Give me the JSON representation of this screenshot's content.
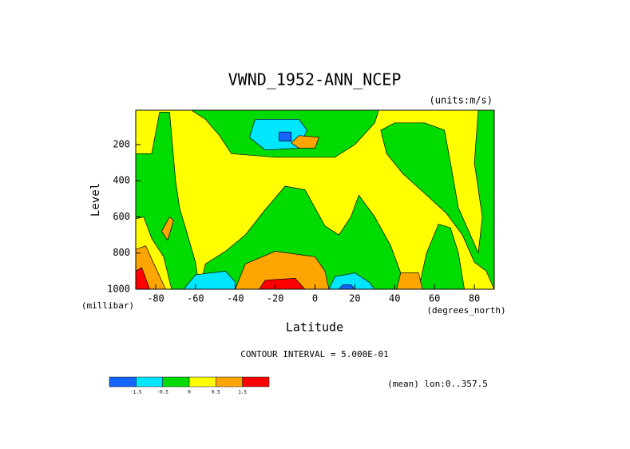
{
  "chart_data": {
    "type": "contour",
    "title": "VWND_1952-ANN_NCEP",
    "units_label": "(units:m/s)",
    "y_label": "Level",
    "y_units": "(millibar)",
    "x_label": "Latitude",
    "x_units": "(degrees_north)",
    "contour_interval": "CONTOUR INTERVAL = 5.000E-01",
    "note": "(mean) lon:0..357.5",
    "xlim": [
      -90,
      90
    ],
    "ylim": [
      1000,
      10
    ],
    "xticks": [
      -80,
      -60,
      -40,
      -20,
      0,
      20,
      40,
      60,
      80
    ],
    "yticks": [
      200,
      400,
      600,
      800,
      1000
    ],
    "background_bin": 3,
    "colorbar": {
      "colors": [
        "#1464ff",
        "#00e6ff",
        "#00dc00",
        "#ffff00",
        "#ffa500",
        "#ff0000"
      ],
      "boundaries": [
        -1.5,
        -0.5,
        0.0,
        0.5,
        1.5
      ]
    },
    "regions": [
      {
        "bin": 2,
        "points": [
          [
            -90,
            250
          ],
          [
            -82,
            250
          ],
          [
            -78,
            20
          ],
          [
            -73,
            20
          ],
          [
            -72,
            150
          ],
          [
            -70,
            400
          ],
          [
            -68,
            550
          ],
          [
            -64,
            700
          ],
          [
            -60,
            850
          ],
          [
            -58,
            1000
          ],
          [
            -90,
            1000
          ]
        ]
      },
      {
        "bin": 3,
        "points": [
          [
            -90,
            610
          ],
          [
            -86,
            600
          ],
          [
            -82,
            720
          ],
          [
            -76,
            820
          ],
          [
            -72,
            1000
          ],
          [
            -90,
            1000
          ]
        ]
      },
      {
        "bin": 2,
        "points": [
          [
            -62,
            10
          ],
          [
            32,
            10
          ],
          [
            30,
            80
          ],
          [
            20,
            200
          ],
          [
            10,
            270
          ],
          [
            -20,
            270
          ],
          [
            -42,
            250
          ],
          [
            -48,
            150
          ],
          [
            -55,
            60
          ]
        ]
      },
      {
        "bin": 2,
        "points": [
          [
            -58,
            1000
          ],
          [
            -55,
            860
          ],
          [
            -45,
            790
          ],
          [
            -35,
            700
          ],
          [
            -25,
            560
          ],
          [
            -15,
            430
          ],
          [
            -5,
            450
          ],
          [
            5,
            650
          ],
          [
            12,
            700
          ],
          [
            18,
            600
          ],
          [
            22,
            480
          ],
          [
            30,
            600
          ],
          [
            38,
            760
          ],
          [
            44,
            940
          ],
          [
            48,
            1000
          ]
        ]
      },
      {
        "bin": 2,
        "points": [
          [
            33,
            120
          ],
          [
            40,
            80
          ],
          [
            55,
            80
          ],
          [
            65,
            120
          ],
          [
            68,
            300
          ],
          [
            72,
            550
          ],
          [
            78,
            700
          ],
          [
            82,
            800
          ],
          [
            84,
            600
          ],
          [
            80,
            300
          ],
          [
            82,
            10
          ],
          [
            90,
            10
          ],
          [
            90,
            1000
          ],
          [
            86,
            900
          ],
          [
            80,
            850
          ],
          [
            74,
            700
          ],
          [
            66,
            580
          ],
          [
            56,
            480
          ],
          [
            44,
            360
          ],
          [
            36,
            250
          ]
        ]
      },
      {
        "bin": 2,
        "points": [
          [
            52,
            1000
          ],
          [
            56,
            800
          ],
          [
            62,
            640
          ],
          [
            68,
            660
          ],
          [
            72,
            800
          ],
          [
            75,
            1000
          ]
        ]
      },
      {
        "bin": 1,
        "points": [
          [
            -30,
            60
          ],
          [
            -8,
            60
          ],
          [
            -4,
            120
          ],
          [
            -8,
            220
          ],
          [
            -25,
            230
          ],
          [
            -33,
            160
          ]
        ]
      },
      {
        "bin": 0,
        "points": [
          [
            -18,
            130
          ],
          [
            -12,
            130
          ],
          [
            -12,
            180
          ],
          [
            -18,
            180
          ]
        ]
      },
      {
        "bin": 4,
        "points": [
          [
            -12,
            190
          ],
          [
            -8,
            150
          ],
          [
            2,
            160
          ],
          [
            0,
            220
          ],
          [
            -8,
            220
          ]
        ]
      },
      {
        "bin": 1,
        "points": [
          [
            -66,
            1000
          ],
          [
            -60,
            920
          ],
          [
            -45,
            900
          ],
          [
            -40,
            960
          ],
          [
            -40,
            1000
          ]
        ]
      },
      {
        "bin": 1,
        "points": [
          [
            7,
            1000
          ],
          [
            10,
            930
          ],
          [
            20,
            910
          ],
          [
            27,
            960
          ],
          [
            30,
            1000
          ]
        ]
      },
      {
        "bin": 0,
        "points": [
          [
            12,
            1000
          ],
          [
            14,
            975
          ],
          [
            18,
            975
          ],
          [
            20,
            1000
          ]
        ]
      },
      {
        "bin": 4,
        "points": [
          [
            -40,
            1000
          ],
          [
            -35,
            860
          ],
          [
            -20,
            790
          ],
          [
            0,
            820
          ],
          [
            5,
            900
          ],
          [
            7,
            1000
          ]
        ]
      },
      {
        "bin": 5,
        "points": [
          [
            -28,
            1000
          ],
          [
            -25,
            950
          ],
          [
            -10,
            940
          ],
          [
            -5,
            1000
          ]
        ]
      },
      {
        "bin": 4,
        "points": [
          [
            41,
            1000
          ],
          [
            43,
            910
          ],
          [
            52,
            910
          ],
          [
            54,
            1000
          ]
        ]
      },
      {
        "bin": 4,
        "points": [
          [
            -77,
            680
          ],
          [
            -73,
            600
          ],
          [
            -71,
            620
          ],
          [
            -74,
            730
          ]
        ]
      },
      {
        "bin": 4,
        "points": [
          [
            -90,
            780
          ],
          [
            -85,
            760
          ],
          [
            -80,
            880
          ],
          [
            -75,
            1000
          ],
          [
            -90,
            1000
          ]
        ]
      },
      {
        "bin": 5,
        "points": [
          [
            -90,
            900
          ],
          [
            -87,
            880
          ],
          [
            -83,
            1000
          ],
          [
            -90,
            1000
          ]
        ]
      }
    ]
  }
}
